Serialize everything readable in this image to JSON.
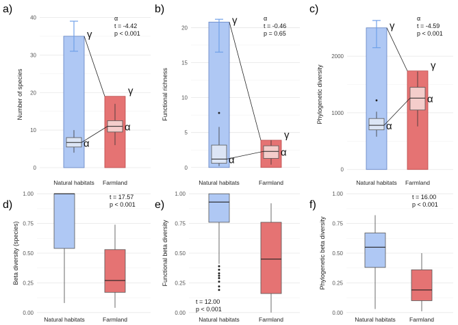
{
  "colors": {
    "natural_fill": "#AFC8F4",
    "natural_stroke": "#5F7FC0",
    "natural_error": "#6FA0E8",
    "natural_alpha_fill": "#DCE5F5",
    "farm_fill": "#E57373",
    "farm_stroke": "#B94A4A",
    "farm_alpha_fill": "#F4CDCB",
    "grid": "#E6E6E6",
    "line": "#222222"
  },
  "chart_data": [
    {
      "panel_label": "a)",
      "type": "bar_with_boxplot",
      "ylabel": "Number of species",
      "ylim": [
        -2,
        41
      ],
      "yticks": [
        0,
        10,
        20,
        30,
        40
      ],
      "categories": [
        "Natural habitats",
        "Farmland"
      ],
      "gamma": [
        {
          "value": 35,
          "err_low": 31,
          "err_high": 39
        },
        {
          "value": 19
        }
      ],
      "alpha_box": [
        {
          "min": 4,
          "q1": 5.5,
          "median": 6.7,
          "q3": 8,
          "max": 10
        },
        {
          "min": 6,
          "q1": 9.5,
          "median": 11,
          "q3": 12.5,
          "max": 17
        }
      ],
      "outliers": [
        [],
        []
      ],
      "gamma_label": "γ",
      "alpha_label": "α",
      "stats": [
        "α",
        "t = -4.42",
        "p < 0.001"
      ]
    },
    {
      "panel_label": "b)",
      "type": "bar_with_boxplot",
      "ylabel": "Functional richness",
      "ylim": [
        -1.1,
        22
      ],
      "yticks": [
        0,
        5,
        10,
        15,
        20
      ],
      "categories": [
        "Natural habitats",
        "Farmland"
      ],
      "gamma": [
        {
          "value": 20.8,
          "err_low": 16.5,
          "err_high": 21.2
        },
        {
          "value": 3.9
        }
      ],
      "alpha_box": [
        {
          "min": 0.2,
          "q1": 0.6,
          "median": 1.2,
          "q3": 3.2,
          "max": 5.8
        },
        {
          "min": 0.4,
          "q1": 1.3,
          "median": 2.3,
          "q3": 3.1,
          "max": 3.9
        }
      ],
      "outliers": [
        [
          7.8
        ],
        []
      ],
      "gamma_label": "γ",
      "alpha_label": "α",
      "stats": [
        "α",
        "t = -0.46",
        "p = 0.65"
      ]
    },
    {
      "panel_label": "c)",
      "type": "bar_with_boxplot",
      "ylabel": "Phylogenetic diversity",
      "ylim": [
        -100,
        2750
      ],
      "yticks": [
        0,
        1000,
        2000
      ],
      "categories": [
        "Natural habitats",
        "Farmland"
      ],
      "gamma": [
        {
          "value": 2500,
          "err_low": 2150,
          "err_high": 2630
        },
        {
          "value": 1740
        }
      ],
      "alpha_box": [
        {
          "min": 580,
          "q1": 700,
          "median": 780,
          "q3": 900,
          "max": 1020
        },
        {
          "min": 760,
          "q1": 1050,
          "median": 1260,
          "q3": 1450,
          "max": 1730
        }
      ],
      "outliers": [
        [
          1220
        ],
        []
      ],
      "gamma_label": "γ",
      "alpha_label": "α",
      "stats": [
        "α",
        "t = -4.59",
        "p < 0.001"
      ]
    },
    {
      "panel_label": "d)",
      "type": "boxplot",
      "ylabel": "Beta diversity (species)",
      "ylim": [
        -0.03,
        1.03
      ],
      "yticks": [
        0.0,
        0.25,
        0.5,
        0.75,
        1.0
      ],
      "ytick_labels": [
        "0.00",
        "0.25",
        "0.50",
        "0.75",
        "1.00"
      ],
      "categories": [
        "Natural habitats",
        "Farmland"
      ],
      "boxes": [
        {
          "min": 0.08,
          "q1": 0.54,
          "median": 1.0,
          "q3": 1.0,
          "max": 1.0
        },
        {
          "min": 0.04,
          "q1": 0.17,
          "median": 0.27,
          "q3": 0.53,
          "max": 0.74
        }
      ],
      "outliers": [
        [],
        []
      ],
      "stats": [
        "t = 17.57",
        "p < 0.001"
      ],
      "stats_position": "top-right"
    },
    {
      "panel_label": "e)",
      "type": "boxplot",
      "ylabel": "Functional beta diversity",
      "ylim": [
        -0.03,
        1.03
      ],
      "yticks": [
        0.0,
        0.25,
        0.5,
        0.75,
        1.0
      ],
      "ytick_labels": [
        "0.00",
        "0.25",
        "0.50",
        "0.75",
        "1.00"
      ],
      "categories": [
        "Natural habitats",
        "Farmland"
      ],
      "boxes": [
        {
          "min": 0.41,
          "q1": 0.76,
          "median": 0.93,
          "q3": 1.0,
          "max": 1.0
        },
        {
          "min": 0.0,
          "q1": 0.16,
          "median": 0.45,
          "q3": 0.76,
          "max": 0.92
        }
      ],
      "outliers": [
        [
          0.39,
          0.36,
          0.33,
          0.31,
          0.29,
          0.26,
          0.22,
          0.19
        ],
        []
      ],
      "stats": [
        "t = 12.00",
        "p < 0.001"
      ],
      "stats_position": "bottom-left"
    },
    {
      "panel_label": "f)",
      "type": "boxplot",
      "ylabel": "Phylogenetic beta diversity",
      "ylim": [
        -0.03,
        1.03
      ],
      "yticks": [
        0.0,
        0.25,
        0.5,
        0.75,
        1.0
      ],
      "ytick_labels": [
        "0.00",
        "0.25",
        "0.50",
        "0.75",
        "1.00"
      ],
      "categories": [
        "Natural habitats",
        "Farmland"
      ],
      "boxes": [
        {
          "min": 0.03,
          "q1": 0.38,
          "median": 0.55,
          "q3": 0.67,
          "max": 0.82
        },
        {
          "min": 0.01,
          "q1": 0.1,
          "median": 0.19,
          "q3": 0.36,
          "max": 0.5
        }
      ],
      "outliers": [
        [],
        []
      ],
      "stats": [
        "t = 16.00",
        "p < 0.001"
      ],
      "stats_position": "top-right"
    }
  ]
}
